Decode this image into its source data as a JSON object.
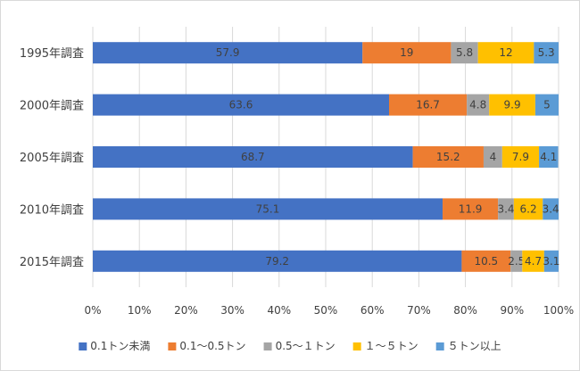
{
  "chart_data": {
    "type": "bar",
    "orientation": "horizontal",
    "stacked": "percent",
    "categories": [
      "1995年調査",
      "2000年調査",
      "2005年調査",
      "2010年調査",
      "2015年調査"
    ],
    "series": [
      {
        "name": "0.1トン未満",
        "color": "#4472C4",
        "values": [
          57.9,
          63.6,
          68.7,
          75.1,
          79.2
        ]
      },
      {
        "name": "0.1～0.5トン",
        "color": "#ED7D31",
        "values": [
          19,
          16.7,
          15.2,
          11.9,
          10.5
        ]
      },
      {
        "name": "0.5～１トン",
        "color": "#A5A5A5",
        "values": [
          5.8,
          4.8,
          4,
          3.4,
          2.5
        ]
      },
      {
        "name": "１～５トン",
        "color": "#FFC000",
        "values": [
          12,
          9.9,
          7.9,
          6.2,
          4.7
        ]
      },
      {
        "name": "５トン以上",
        "color": "#5B9BD5",
        "values": [
          5.3,
          5,
          4.1,
          3.4,
          3.1
        ]
      }
    ],
    "xticks": [
      "0%",
      "10%",
      "20%",
      "30%",
      "40%",
      "50%",
      "60%",
      "70%",
      "80%",
      "90%",
      "100%"
    ],
    "xlim": [
      0,
      100
    ],
    "grid": true,
    "legend": "bottom"
  }
}
